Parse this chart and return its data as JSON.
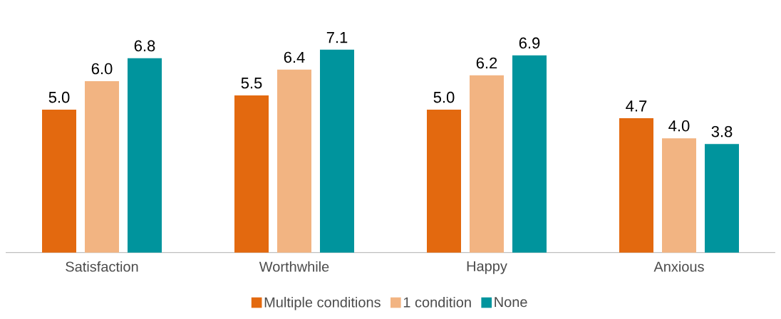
{
  "chart_data": {
    "type": "bar",
    "categories": [
      "Satisfaction",
      "Worthwhile",
      "Happy",
      "Anxious"
    ],
    "series": [
      {
        "name": "Multiple conditions",
        "color": "#e3690f",
        "values": [
          5.0,
          5.5,
          5.0,
          4.7
        ],
        "value_labels": [
          "5.0",
          "5.5",
          "5.0",
          "4.7"
        ]
      },
      {
        "name": "1 condition",
        "color": "#f2b482",
        "values": [
          6.0,
          6.4,
          6.2,
          4.0
        ],
        "value_labels": [
          "6.0",
          "6.4",
          "6.2",
          "4.0"
        ]
      },
      {
        "name": "None",
        "color": "#00949d",
        "values": [
          6.8,
          7.1,
          6.9,
          3.8
        ],
        "value_labels": [
          "6.8",
          "7.1",
          "6.9",
          "3.8"
        ]
      }
    ],
    "legend": "bottom"
  }
}
